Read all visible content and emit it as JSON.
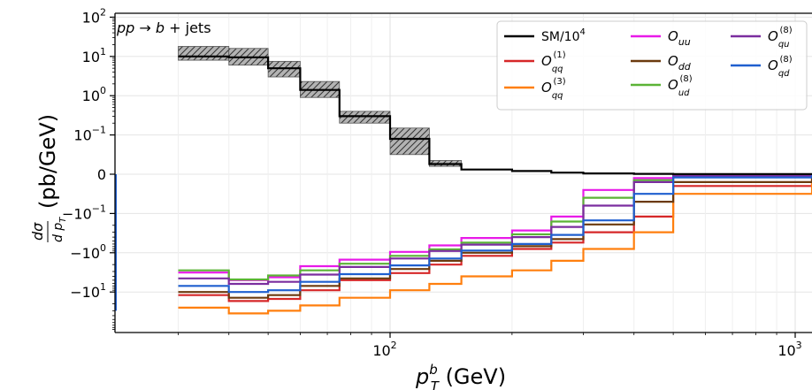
{
  "chart_data": {
    "type": "line",
    "title": "",
    "annotation": "pp → b + jets",
    "xlabel": "p_T^b (GeV)",
    "ylabel": "dσ/dp_T (pb/GeV)",
    "xscale": "log",
    "yscale": "symlog",
    "xlim": [
      30,
      1100
    ],
    "grid": true,
    "legend": "top-right, 3 columns",
    "x_tick_labels": [
      "10^2",
      "10^3"
    ],
    "y_tick_labels": [
      "10^2",
      "10^1",
      "10^0",
      "10^-1",
      "0",
      "-10^-1",
      "-10^0",
      "-10^1"
    ],
    "bin_edges": [
      30,
      40,
      50,
      60,
      75,
      100,
      125,
      150,
      200,
      250,
      300,
      400,
      500,
      1100
    ],
    "sm_band": [
      [
        8,
        18
      ],
      [
        6,
        16
      ],
      [
        3,
        7.5
      ],
      [
        0.9,
        2.3
      ],
      [
        0.2,
        0.4
      ],
      [
        0.05,
        0.15
      ],
      [
        0.02,
        0.035
      ]
    ],
    "series": [
      {
        "name": "SM/10^4",
        "color": "#000000",
        "values": [
          10,
          9.5,
          5,
          1.4,
          0.3,
          0.09,
          0.026,
          0.012,
          0.008,
          0.004,
          0.002,
          0.001,
          0.0005
        ]
      },
      {
        "name": "O_qq^(1)",
        "color": "#d62728",
        "values": [
          -12,
          -17,
          -15,
          -9,
          -5,
          -3.3,
          -2.0,
          -1.2,
          -0.8,
          -0.55,
          -0.3,
          -0.12,
          -0.03
        ]
      },
      {
        "name": "O_qq^(3)",
        "color": "#ff7f0e",
        "values": [
          -25,
          -35,
          -30,
          -22,
          -14,
          -9,
          -6.2,
          -4.0,
          -2.8,
          -1.6,
          -0.8,
          -0.3,
          -0.05
        ]
      },
      {
        "name": "O_uu",
        "color": "#e81ae8",
        "values": [
          -3.2,
          -5.0,
          -4.2,
          -2.2,
          -1.5,
          -0.95,
          -0.65,
          -0.42,
          -0.27,
          -0.12,
          -0.04,
          -0.01,
          -0.002
        ]
      },
      {
        "name": "O_dd",
        "color": "#6b3a0e",
        "values": [
          -10,
          -14,
          -12,
          -7,
          -4.5,
          -2.6,
          -1.6,
          -1.0,
          -0.68,
          -0.45,
          -0.19,
          -0.07,
          -0.02
        ]
      },
      {
        "name": "O_ud^(8)",
        "color": "#5bb336",
        "values": [
          -2.8,
          -4.8,
          -3.8,
          -2.8,
          -1.9,
          -1.2,
          -0.82,
          -0.55,
          -0.34,
          -0.16,
          -0.06,
          -0.015,
          -0.003
        ]
      },
      {
        "name": "O_qu^(8)",
        "color": "#7b2d9f",
        "values": [
          -4.5,
          -6.2,
          -5.5,
          -3.6,
          -2.3,
          -1.4,
          -0.9,
          -0.62,
          -0.4,
          -0.22,
          -0.08,
          -0.02,
          -0.004
        ]
      },
      {
        "name": "O_qd^(8)",
        "color": "#1f5fcf",
        "values": [
          -7,
          -10,
          -9,
          -5.5,
          -3.5,
          -2.1,
          -1.4,
          -0.88,
          -0.6,
          -0.35,
          -0.15,
          -0.05,
          -0.008
        ]
      }
    ]
  }
}
